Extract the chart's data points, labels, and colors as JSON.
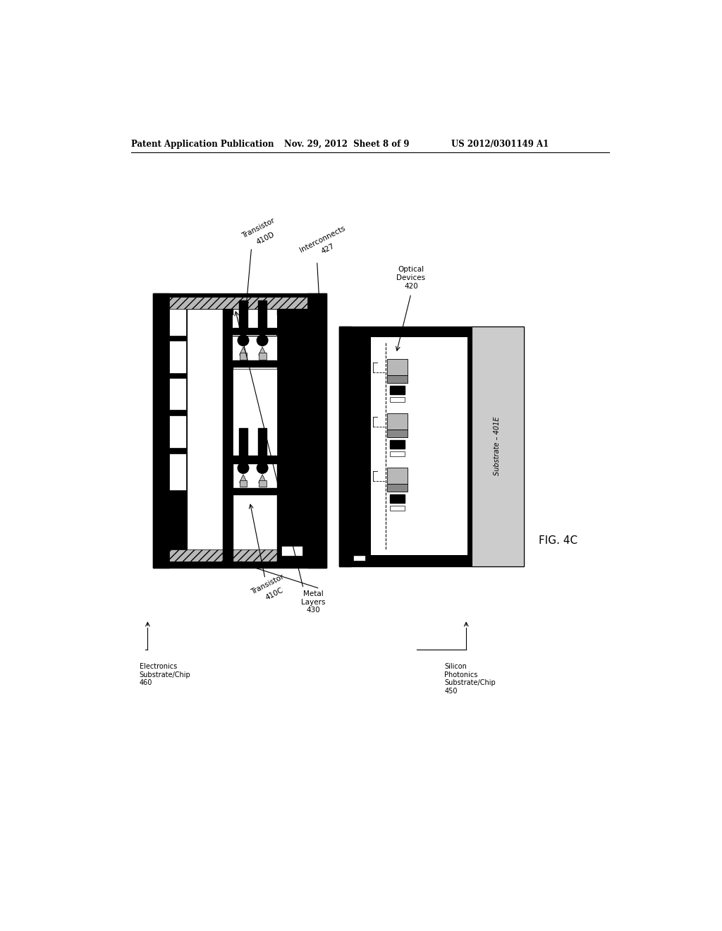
{
  "title_left": "Patent Application Publication",
  "title_mid": "Nov. 29, 2012  Sheet 8 of 9",
  "title_right": "US 2012/0301149 A1",
  "fig_label": "FIG. 4C",
  "bg_color": "#ffffff"
}
